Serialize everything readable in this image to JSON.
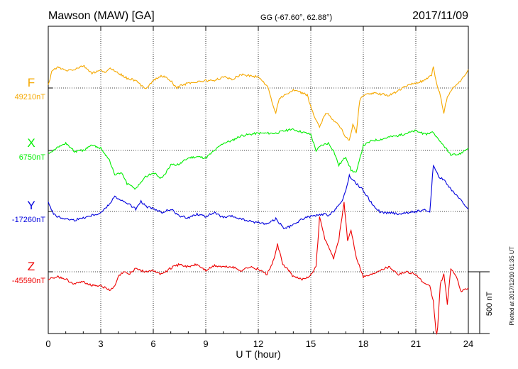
{
  "header": {
    "station": "Mawson (MAW)  [GA]",
    "coords": "GG (-67.60°,  62.88°)",
    "date": "2017/11/09"
  },
  "xaxis": {
    "label": "U T (hour)",
    "ticks": [
      "0",
      "3",
      "6",
      "9",
      "12",
      "15",
      "18",
      "21",
      "24"
    ]
  },
  "scale_bar": {
    "label": "500 nT",
    "value": 500
  },
  "plotted_note": "Plotted at 2017/12/10 01:35 UT",
  "colors": {
    "F": "#f5a800",
    "X": "#00ee00",
    "Y": "#0000dd",
    "Z": "#ee0000"
  },
  "chart_data": {
    "type": "line",
    "title": "Mawson (MAW)  [GA]",
    "xlabel": "U T (hour)",
    "xlim": [
      0,
      24
    ],
    "grid": true,
    "series": [
      {
        "name": "F",
        "baseline_label": "49210nT",
        "baseline": 49210,
        "x": [
          0,
          0.2,
          0.5,
          1,
          1.5,
          2,
          2.5,
          3,
          3.3,
          3.6,
          4,
          4.5,
          5,
          5.3,
          5.6,
          6,
          6.5,
          7,
          7.3,
          7.6,
          8,
          8.5,
          9,
          9.5,
          10,
          10.5,
          11,
          11.5,
          12,
          12.3,
          12.6,
          12.9,
          13,
          13.2,
          13.5,
          14,
          14.5,
          14.8,
          15,
          15.2,
          15.5,
          15.8,
          16,
          16.2,
          16.5,
          16.8,
          17,
          17.2,
          17.4,
          17.6,
          17.8,
          18,
          18.5,
          19,
          19.5,
          20,
          20.5,
          21,
          21.5,
          21.9,
          22,
          22.2,
          22.4,
          22.6,
          22.8,
          23,
          23.3,
          23.6,
          24
        ],
        "values": [
          20,
          130,
          170,
          140,
          150,
          180,
          120,
          140,
          130,
          160,
          120,
          80,
          60,
          20,
          0,
          60,
          100,
          60,
          0,
          20,
          40,
          50,
          60,
          60,
          90,
          70,
          110,
          100,
          90,
          50,
          -10,
          -170,
          -200,
          -80,
          -60,
          -20,
          -40,
          -60,
          -150,
          -230,
          -320,
          -220,
          -200,
          -260,
          -280,
          -340,
          -400,
          -420,
          -300,
          -360,
          -100,
          -60,
          -40,
          -50,
          -60,
          -20,
          20,
          40,
          60,
          100,
          170,
          30,
          -60,
          -200,
          -70,
          -20,
          30,
          60,
          150
        ]
      },
      {
        "name": "X",
        "baseline_label": "6750nT",
        "baseline": 6750,
        "x": [
          0,
          0.5,
          1,
          1.5,
          2,
          2.5,
          3,
          3.5,
          3.8,
          4.2,
          4.5,
          5,
          5.5,
          6,
          6.5,
          7,
          7.5,
          8,
          8.5,
          9,
          9.5,
          10,
          10.5,
          11,
          11.5,
          12,
          12.5,
          13,
          13.5,
          14,
          14.5,
          15,
          15.3,
          15.6,
          16,
          16.3,
          16.6,
          17,
          17.3,
          17.6,
          18,
          18.5,
          19,
          19.5,
          20,
          20.5,
          21,
          21.5,
          22,
          22.3,
          22.6,
          23,
          23.5,
          24
        ],
        "values": [
          -20,
          20,
          60,
          -10,
          0,
          40,
          20,
          -80,
          -200,
          -180,
          -270,
          -310,
          -220,
          -180,
          -230,
          -120,
          -110,
          -60,
          -50,
          -60,
          0,
          60,
          80,
          120,
          130,
          140,
          140,
          140,
          160,
          170,
          150,
          130,
          0,
          40,
          60,
          0,
          -120,
          -50,
          -160,
          -180,
          40,
          80,
          90,
          110,
          120,
          140,
          160,
          130,
          150,
          80,
          40,
          -40,
          -30,
          20
        ]
      },
      {
        "name": "Y",
        "baseline_label": "-17260nT",
        "baseline": -17260,
        "x": [
          0,
          0.3,
          0.5,
          1,
          1.5,
          2,
          2.5,
          3,
          3.5,
          3.8,
          4,
          4.3,
          4.6,
          5,
          5.3,
          5.6,
          6,
          6.5,
          7,
          7.5,
          8,
          8.5,
          9,
          9.5,
          10,
          10.5,
          11,
          11.5,
          12,
          12.5,
          13,
          13.5,
          14,
          14.5,
          15,
          15.5,
          15.8,
          16,
          16.3,
          16.5,
          16.8,
          17,
          17.2,
          17.5,
          18,
          18.5,
          19,
          19.5,
          20,
          20.5,
          21,
          21.5,
          21.8,
          22,
          22.3,
          22.6,
          23,
          23.5,
          24
        ],
        "values": [
          80,
          -20,
          -40,
          -60,
          -70,
          -50,
          -30,
          -10,
          60,
          130,
          100,
          80,
          60,
          20,
          80,
          40,
          20,
          -10,
          20,
          -40,
          -50,
          -20,
          -40,
          -10,
          -50,
          -40,
          -60,
          -80,
          -90,
          -100,
          -60,
          -140,
          -110,
          -60,
          -40,
          -30,
          -20,
          -40,
          0,
          40,
          80,
          170,
          290,
          240,
          170,
          60,
          -10,
          -10,
          -20,
          -10,
          0,
          10,
          -10,
          380,
          280,
          260,
          180,
          100,
          20
        ]
      },
      {
        "name": "Z",
        "baseline_label": "-45590nT",
        "baseline": -45590,
        "x": [
          0,
          0.5,
          1,
          1.5,
          2,
          2.5,
          3,
          3.5,
          3.8,
          4,
          4.3,
          4.6,
          5,
          5.5,
          6,
          6.5,
          7,
          7.5,
          8,
          8.5,
          9,
          9.5,
          10,
          10.5,
          11,
          11.5,
          12,
          12.5,
          12.9,
          13.1,
          13.4,
          13.8,
          14,
          14.5,
          15,
          15.3,
          15.5,
          15.8,
          16,
          16.3,
          16.6,
          16.9,
          17.1,
          17.3,
          17.6,
          18,
          18.5,
          19,
          19.5,
          20,
          20.5,
          21,
          21.5,
          21.8,
          22,
          22.2,
          22.4,
          22.6,
          22.8,
          23,
          23.3,
          23.6,
          24
        ],
        "values": [
          -60,
          -40,
          -60,
          -100,
          -80,
          -110,
          -110,
          -150,
          -120,
          -40,
          0,
          -20,
          30,
          0,
          10,
          -20,
          30,
          60,
          40,
          60,
          10,
          50,
          40,
          40,
          10,
          40,
          20,
          -20,
          100,
          220,
          60,
          0,
          -40,
          -60,
          -30,
          40,
          440,
          270,
          200,
          110,
          260,
          560,
          250,
          340,
          120,
          -40,
          -20,
          20,
          40,
          -20,
          0,
          -20,
          -100,
          -120,
          -240,
          -560,
          -100,
          -20,
          -260,
          30,
          -40,
          -160,
          -130
        ]
      }
    ]
  }
}
